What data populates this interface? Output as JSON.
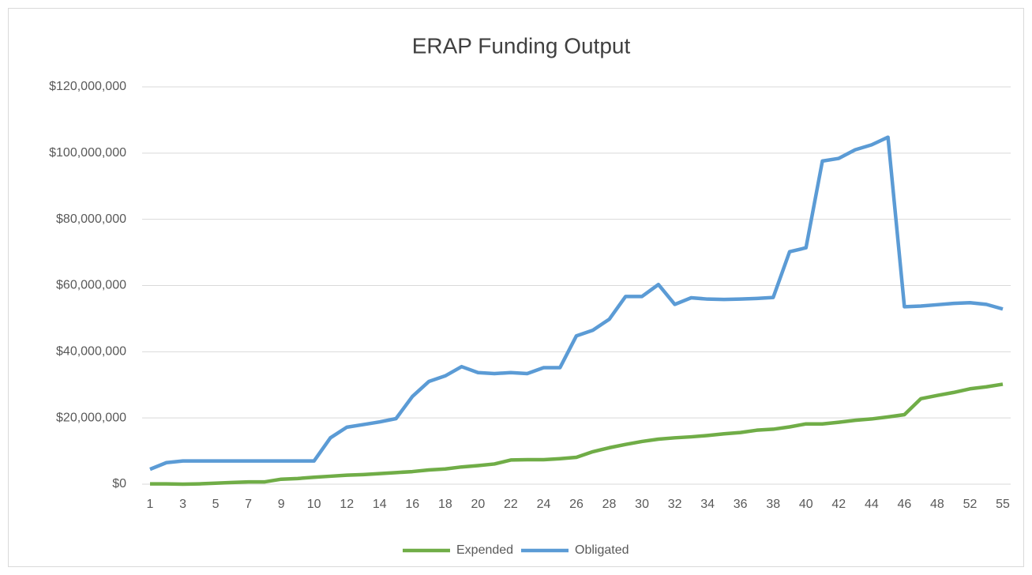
{
  "chart_data": {
    "type": "line",
    "title": "ERAP Funding Output",
    "categories": [
      "1",
      null,
      "3",
      null,
      "5",
      null,
      "7",
      null,
      "9",
      null,
      "10",
      null,
      "12",
      null,
      "14",
      null,
      "16",
      null,
      "18",
      null,
      "20",
      null,
      "22",
      null,
      "24",
      null,
      "26",
      null,
      "28",
      null,
      "30",
      null,
      "32",
      null,
      "34",
      null,
      "36",
      null,
      "38",
      null,
      "40",
      null,
      "42",
      null,
      "44",
      null,
      "46",
      null,
      "48",
      null,
      "52",
      null,
      "55"
    ],
    "series": [
      {
        "name": "Expended",
        "color": "#70ad47",
        "values": [
          100000,
          100000,
          0,
          100000,
          300000,
          500000,
          700000,
          700000,
          1500000,
          1700000,
          2100000,
          2400000,
          2700000,
          2900000,
          3200000,
          3500000,
          3800000,
          4300000,
          4600000,
          5200000,
          5600000,
          6100000,
          7300000,
          7400000,
          7400000,
          7700000,
          8100000,
          9800000,
          11000000,
          12000000,
          12900000,
          13600000,
          14000000,
          14300000,
          14700000,
          15200000,
          15600000,
          16300000,
          16600000,
          17300000,
          18200000,
          18200000,
          18700000,
          19300000,
          19700000,
          20300000,
          21000000,
          25800000,
          26800000,
          27700000,
          28800000,
          29400000,
          30200000
        ]
      },
      {
        "name": "Obligated",
        "color": "#5b9bd5",
        "values": [
          4500000,
          6500000,
          7000000,
          7000000,
          7000000,
          7000000,
          7000000,
          7000000,
          7000000,
          7000000,
          7000000,
          14000000,
          17200000,
          18000000,
          18800000,
          19800000,
          26500000,
          31000000,
          32700000,
          35500000,
          33700000,
          33400000,
          33700000,
          33400000,
          35200000,
          35200000,
          44800000,
          46500000,
          49800000,
          56700000,
          56700000,
          60300000,
          54300000,
          56300000,
          55900000,
          55800000,
          55900000,
          56100000,
          56400000,
          70200000,
          71400000,
          97600000,
          98400000,
          101000000,
          102500000,
          104800000,
          53600000,
          53800000,
          54200000,
          54600000,
          54800000,
          54300000,
          52900000
        ]
      }
    ],
    "ylim": [
      0,
      120000000
    ],
    "yticks": [
      {
        "value": 0,
        "label": "$0"
      },
      {
        "value": 20000000,
        "label": "$20,000,000"
      },
      {
        "value": 40000000,
        "label": "$40,000,000"
      },
      {
        "value": 60000000,
        "label": "$60,000,000"
      },
      {
        "value": 80000000,
        "label": "$80,000,000"
      },
      {
        "value": 100000000,
        "label": "$100,000,000"
      },
      {
        "value": 120000000,
        "label": "$120,000,000"
      }
    ],
    "grid": true,
    "legend": "bottom"
  }
}
